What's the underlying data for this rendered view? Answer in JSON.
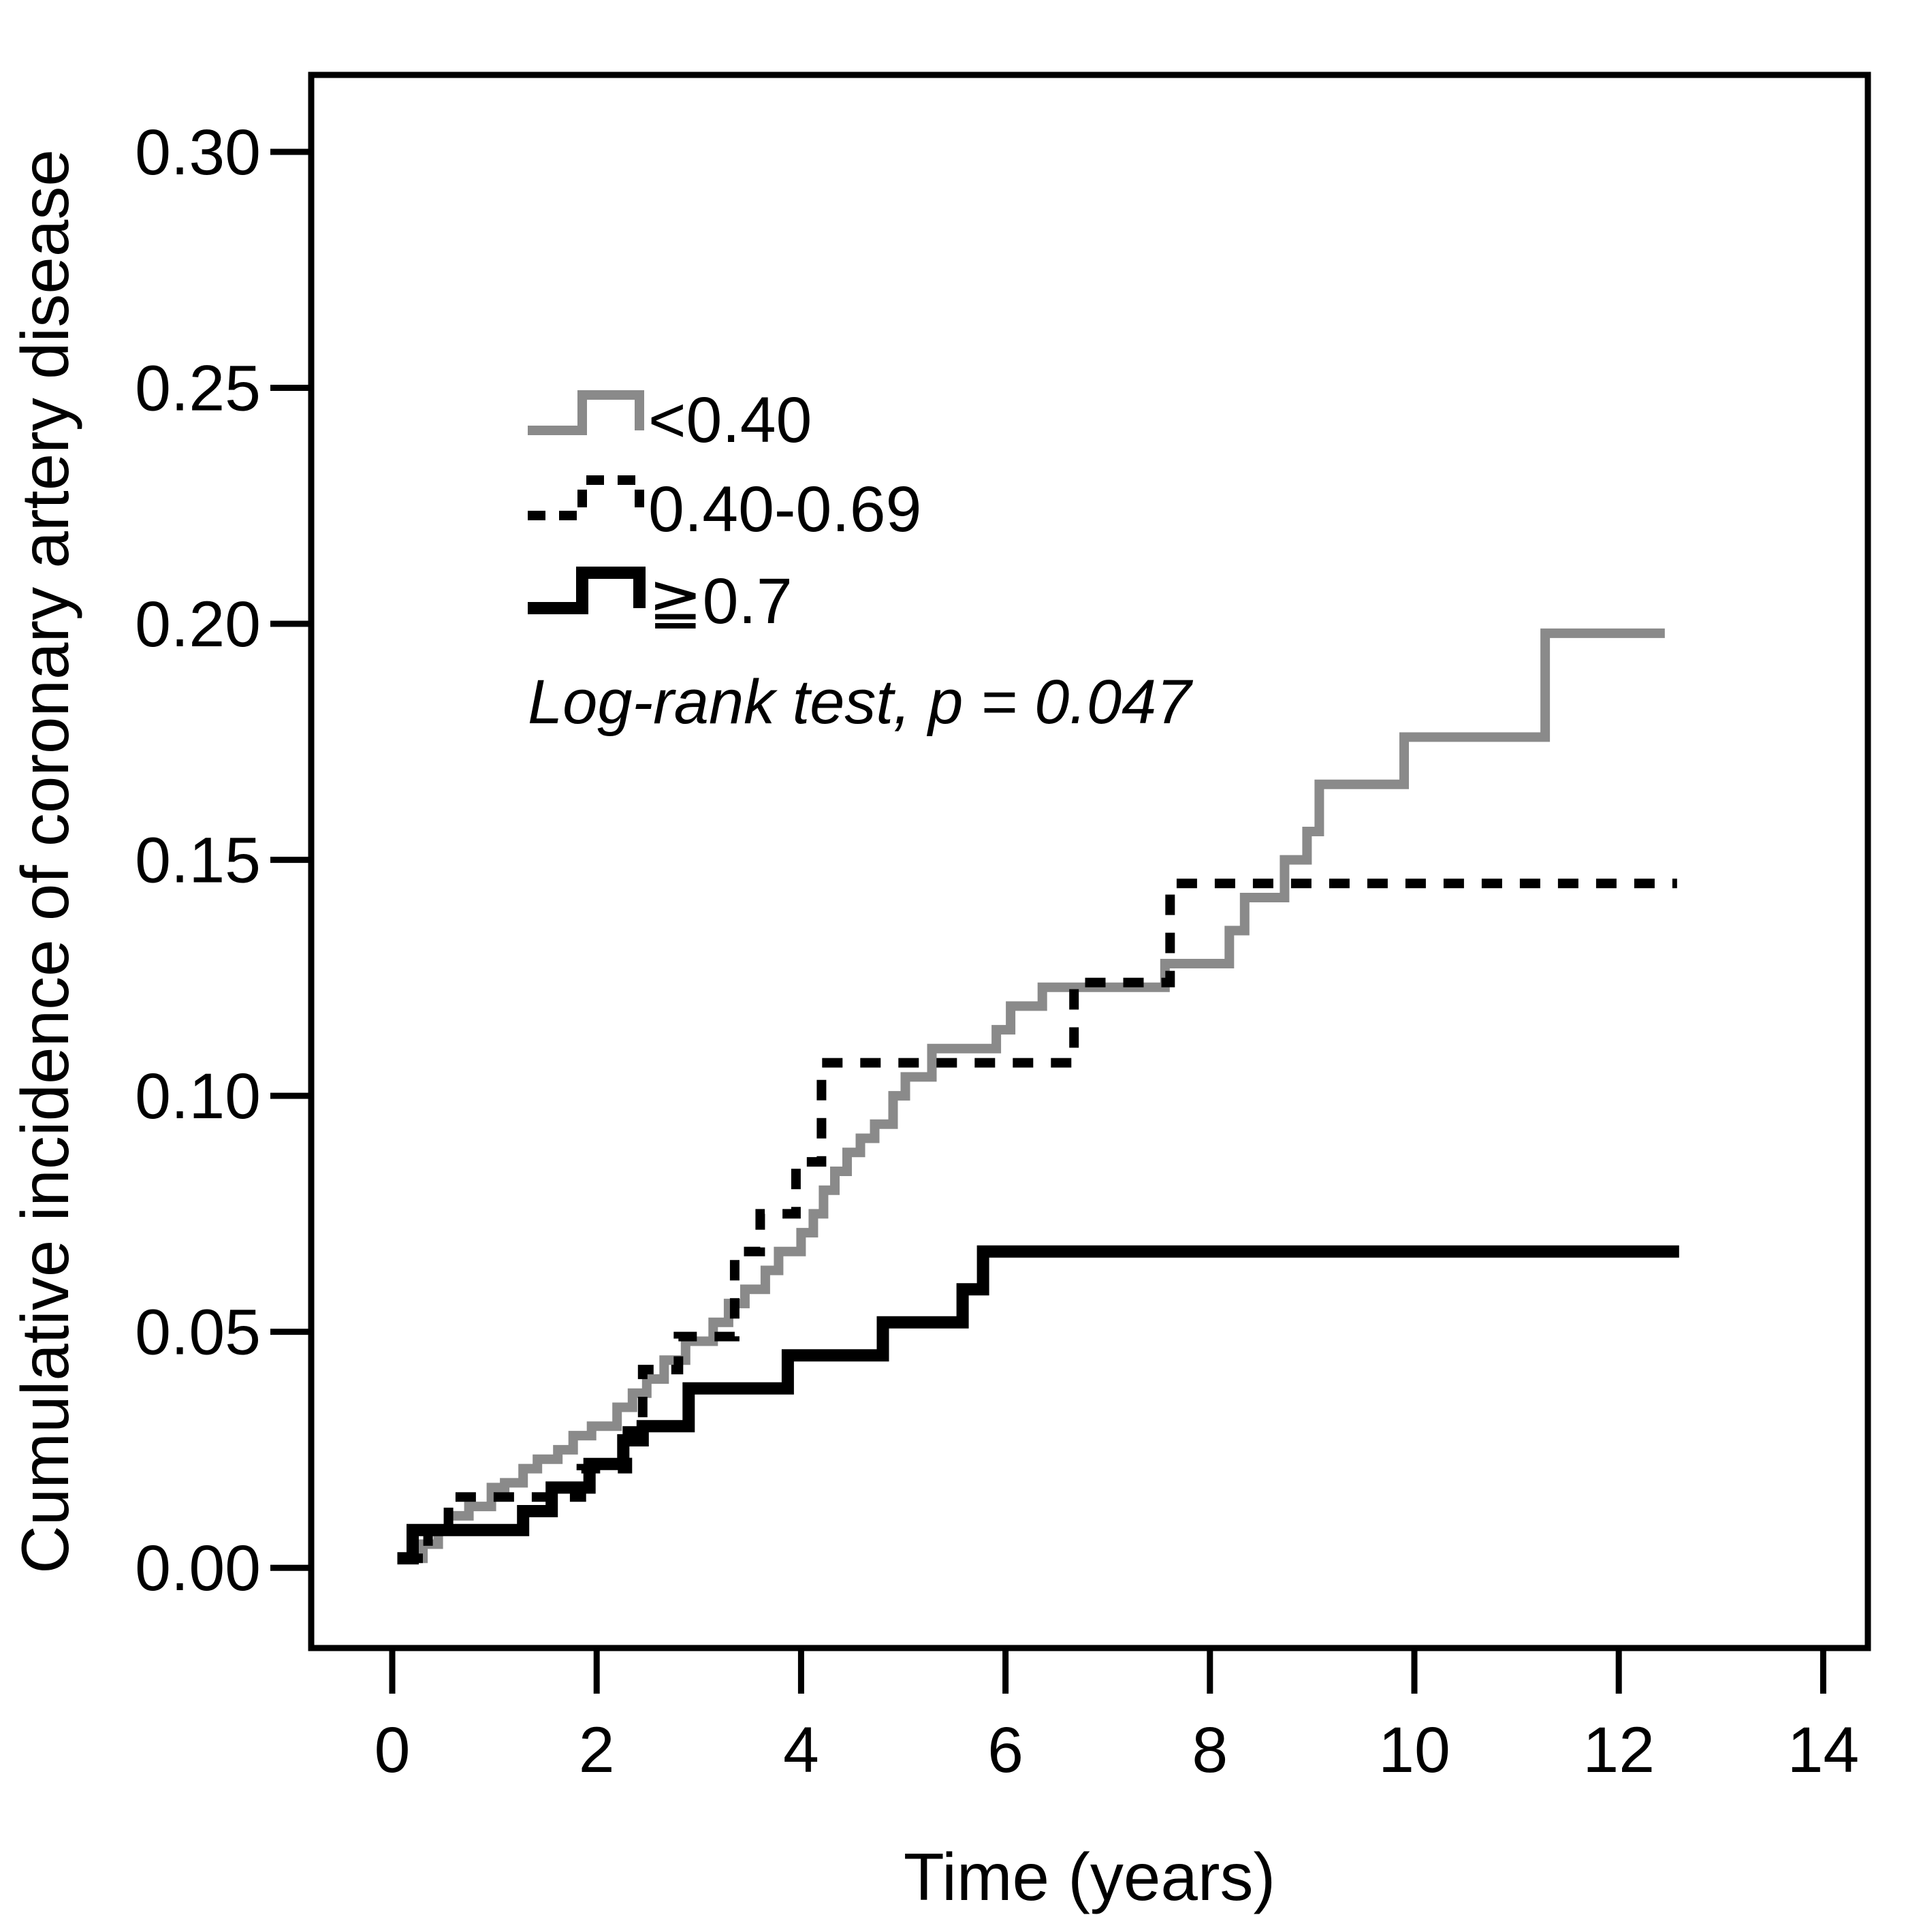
{
  "chart_data": {
    "type": "line",
    "subtype": "step-survival",
    "title": "",
    "xlabel": "Time (years)",
    "ylabel": "Cumulative incidence of coronary artery disease",
    "annotation": "Log-rank test, p = 0.047",
    "legend_position": "upper-left-inside",
    "grid": false,
    "xlim": [
      -0.793,
      14.437
    ],
    "ylim": [
      -0.017,
      0.3163
    ],
    "x_tick_values": [
      0,
      2,
      4,
      6,
      8,
      10,
      12,
      14
    ],
    "x_tick_labels": [
      "0",
      "2",
      "4",
      "6",
      "8",
      "10",
      "12",
      "14"
    ],
    "y_tick_values": [
      0.0,
      0.05,
      0.1,
      0.15,
      0.2,
      0.25,
      0.3
    ],
    "y_tick_labels": [
      "0.00",
      "0.05",
      "0.10",
      "0.15",
      "0.20",
      "0.25",
      "0.30"
    ],
    "colors": {
      "gray_series": "#8a8a8a",
      "black_series": "#000000"
    },
    "series": [
      {
        "name": "<0.40",
        "style": "solid",
        "color": "#8a8a8a",
        "stroke_width": 14,
        "end_time": 12.45,
        "points": [
          [
            0.05,
            0.002
          ],
          [
            0.3,
            0.005
          ],
          [
            0.45,
            0.008
          ],
          [
            0.55,
            0.011
          ],
          [
            0.75,
            0.013
          ],
          [
            0.97,
            0.017
          ],
          [
            1.1,
            0.018
          ],
          [
            1.28,
            0.021
          ],
          [
            1.42,
            0.023
          ],
          [
            1.62,
            0.025
          ],
          [
            1.77,
            0.028
          ],
          [
            1.95,
            0.03
          ],
          [
            2.2,
            0.034
          ],
          [
            2.35,
            0.037
          ],
          [
            2.49,
            0.04
          ],
          [
            2.66,
            0.044
          ],
          [
            2.87,
            0.048
          ],
          [
            3.14,
            0.052
          ],
          [
            3.29,
            0.056
          ],
          [
            3.45,
            0.059
          ],
          [
            3.65,
            0.063
          ],
          [
            3.78,
            0.067
          ],
          [
            4.0,
            0.071
          ],
          [
            4.12,
            0.075
          ],
          [
            4.22,
            0.08
          ],
          [
            4.33,
            0.084
          ],
          [
            4.45,
            0.088
          ],
          [
            4.58,
            0.091
          ],
          [
            4.72,
            0.094
          ],
          [
            4.9,
            0.1
          ],
          [
            5.02,
            0.104
          ],
          [
            5.28,
            0.11
          ],
          [
            5.91,
            0.114
          ],
          [
            6.05,
            0.119
          ],
          [
            6.36,
            0.123
          ],
          [
            7.56,
            0.128
          ],
          [
            8.19,
            0.135
          ],
          [
            8.34,
            0.142
          ],
          [
            8.73,
            0.15
          ],
          [
            8.95,
            0.156
          ],
          [
            9.07,
            0.166
          ],
          [
            9.9,
            0.176
          ],
          [
            11.28,
            0.198
          ]
        ]
      },
      {
        "name": "0.40-0.69",
        "style": "dashed",
        "color": "#000000",
        "stroke_width": 14,
        "end_time": 12.57,
        "points": [
          [
            0.1,
            0.002
          ],
          [
            0.35,
            0.008
          ],
          [
            0.55,
            0.015
          ],
          [
            1.85,
            0.021
          ],
          [
            2.3,
            0.029
          ],
          [
            2.45,
            0.042
          ],
          [
            2.8,
            0.049
          ],
          [
            3.35,
            0.067
          ],
          [
            3.6,
            0.075
          ],
          [
            3.95,
            0.086
          ],
          [
            4.2,
            0.107
          ],
          [
            6.67,
            0.124
          ],
          [
            7.61,
            0.145
          ]
        ]
      },
      {
        "name": "≧0.7",
        "style": "solid",
        "color": "#000000",
        "stroke_width": 18,
        "end_time": 12.59,
        "points": [
          [
            0.05,
            0.002
          ],
          [
            0.2,
            0.008
          ],
          [
            1.28,
            0.012
          ],
          [
            1.56,
            0.017
          ],
          [
            1.93,
            0.022
          ],
          [
            2.26,
            0.027
          ],
          [
            2.45,
            0.03
          ],
          [
            2.9,
            0.038
          ],
          [
            3.87,
            0.045
          ],
          [
            4.8,
            0.052
          ],
          [
            5.58,
            0.059
          ],
          [
            5.78,
            0.067
          ]
        ]
      }
    ]
  }
}
